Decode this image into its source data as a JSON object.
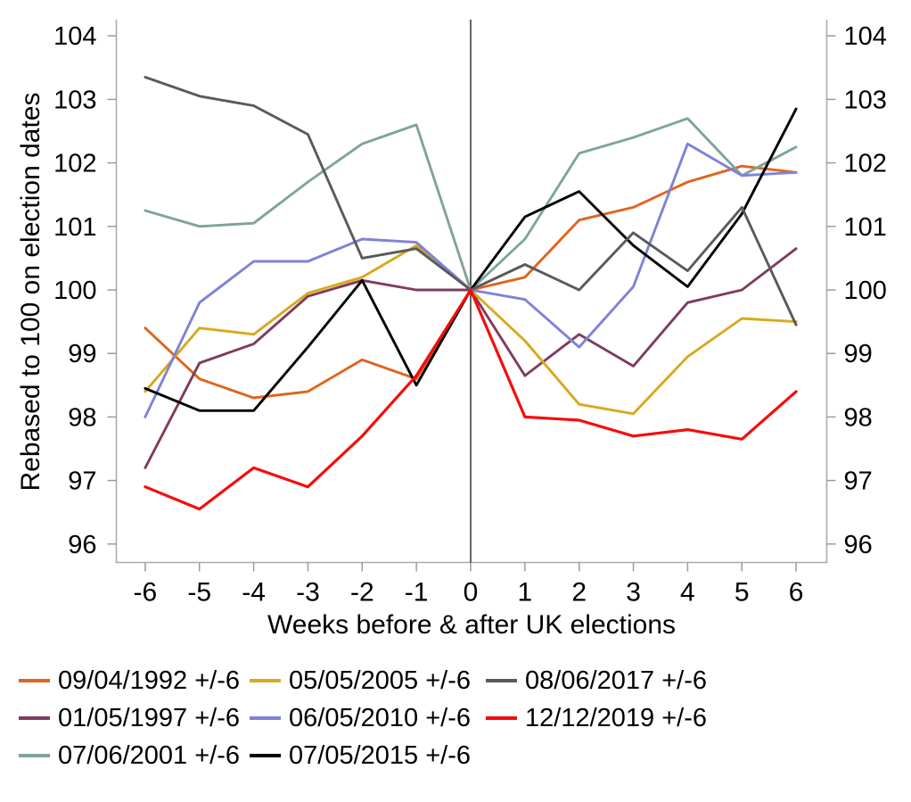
{
  "chart_data": {
    "type": "line",
    "title": "",
    "xlabel": "Weeks before & after UK elections",
    "ylabel": "Rebased to 100 on election dates",
    "x": [
      -6,
      -5,
      -4,
      -3,
      -2,
      -1,
      0,
      1,
      2,
      3,
      4,
      5,
      6
    ],
    "xticks": [
      -6,
      -5,
      -4,
      -3,
      -2,
      -1,
      0,
      1,
      2,
      3,
      4,
      5,
      6
    ],
    "yticks": [
      96,
      97,
      98,
      99,
      100,
      101,
      102,
      103,
      104
    ],
    "ylim": [
      95.7,
      104.3
    ],
    "grid": false,
    "zero_vertical_line_x": 0,
    "legend_position": "below",
    "series": [
      {
        "name": "09/04/1992 +/-6",
        "color": "#E0641E",
        "values": [
          99.4,
          98.6,
          98.3,
          98.4,
          98.9,
          98.6,
          100,
          100.2,
          101.1,
          101.3,
          101.7,
          101.95,
          101.85
        ]
      },
      {
        "name": "01/05/1997 +/-6",
        "color": "#7D3C5F",
        "values": [
          97.2,
          98.85,
          99.15,
          99.9,
          100.15,
          100.0,
          100,
          98.65,
          99.3,
          98.8,
          99.8,
          100.0,
          100.65
        ]
      },
      {
        "name": "07/06/2001 +/-6",
        "color": "#7FA594",
        "values": [
          101.25,
          101.0,
          101.05,
          101.7,
          102.3,
          102.6,
          100,
          100.8,
          102.15,
          102.4,
          102.7,
          101.8,
          102.25
        ]
      },
      {
        "name": "05/05/2005 +/-6",
        "color": "#D9A81C",
        "values": [
          98.4,
          99.4,
          99.3,
          99.95,
          100.2,
          100.7,
          100,
          99.2,
          98.2,
          98.05,
          98.95,
          99.55,
          99.5
        ]
      },
      {
        "name": "06/05/2010 +/-6",
        "color": "#7E82D8",
        "values": [
          98.0,
          99.8,
          100.45,
          100.45,
          100.8,
          100.75,
          100,
          99.85,
          99.1,
          100.05,
          102.3,
          101.8,
          101.85
        ]
      },
      {
        "name": "07/05/2015 +/-6",
        "color": "#000000",
        "values": [
          98.45,
          98.1,
          98.1,
          99.1,
          100.15,
          98.5,
          100,
          101.15,
          101.55,
          100.7,
          100.05,
          101.2,
          102.85
        ]
      },
      {
        "name": "08/06/2017 +/-6",
        "color": "#5A5A5A",
        "values": [
          103.35,
          103.05,
          102.9,
          102.45,
          100.5,
          100.65,
          100,
          100.4,
          100.0,
          100.9,
          100.3,
          101.3,
          99.45
        ]
      },
      {
        "name": "12/12/2019 +/-6",
        "color": "#F80B0B",
        "values": [
          96.9,
          96.55,
          97.2,
          96.9,
          97.7,
          98.65,
          100,
          98.0,
          97.95,
          97.7,
          97.8,
          97.65,
          98.4
        ]
      }
    ]
  },
  "axes": {
    "x_title": "Weeks before & after UK elections",
    "y_title": "Rebased to 100 on election dates"
  },
  "style": {
    "axis_line_color": "#ABABAB",
    "tick_color": "#9B9B9B",
    "zero_line_color": "#000000",
    "background": "#FFFFFF"
  }
}
